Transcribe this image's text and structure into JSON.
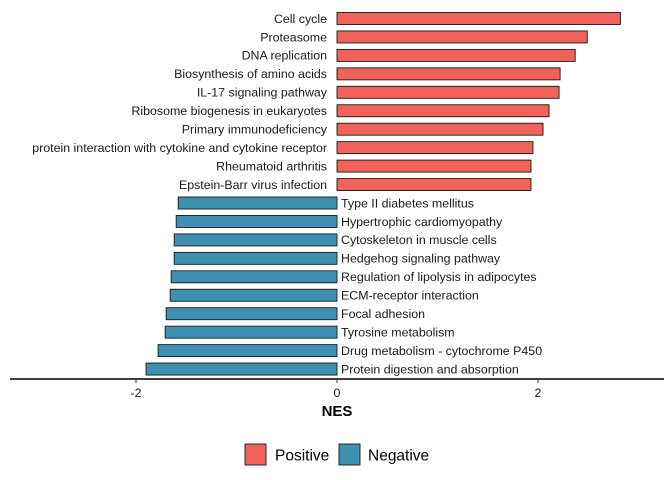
{
  "chart_data": {
    "type": "bar",
    "orientation": "horizontal",
    "xlabel": "NES",
    "ylabel": "",
    "xlim": [
      -3.2,
      3.25
    ],
    "xticks": [
      -2,
      0,
      2
    ],
    "xtick_labels": [
      "-2",
      "0",
      "2"
    ],
    "grid": false,
    "legend_position": "bottom",
    "categories": [
      "Cell cycle",
      "Proteasome",
      "DNA replication",
      "Biosynthesis of amino acids",
      "IL-17 signaling pathway",
      "Ribosome biogenesis in eukaryotes",
      "Primary immunodeficiency",
      "protein interaction with cytokine and cytokine receptor",
      "Rheumatoid arthritis",
      "Epstein-Barr virus infection",
      "Type II diabetes mellitus",
      "Hypertrophic cardiomyopathy",
      "Cytoskeleton in muscle cells",
      "Hedgehog signaling pathway",
      "Regulation of lipolysis in adipocytes",
      "ECM-receptor interaction",
      "Focal adhesion",
      "Tyrosine metabolism",
      "Drug metabolism - cytochrome P450",
      "Protein digestion and absorption"
    ],
    "values": [
      2.82,
      2.49,
      2.37,
      2.22,
      2.21,
      2.11,
      2.05,
      1.95,
      1.93,
      1.93,
      -1.58,
      -1.6,
      -1.62,
      -1.62,
      -1.65,
      -1.66,
      -1.7,
      -1.71,
      -1.78,
      -1.9
    ],
    "series": [
      {
        "name": "Positive",
        "color": "#F0625A"
      },
      {
        "name": "Negative",
        "color": "#3E90B2"
      }
    ]
  }
}
